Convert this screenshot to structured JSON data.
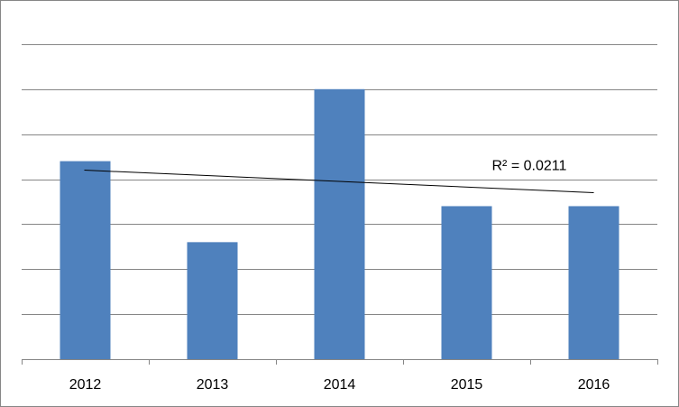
{
  "chart_data": {
    "type": "bar",
    "categories": [
      "2012",
      "2013",
      "2014",
      "2015",
      "2016"
    ],
    "values": [
      4.4,
      2.6,
      6.0,
      3.4,
      3.4
    ],
    "ylim": [
      0,
      7.5
    ],
    "grid": true,
    "legend": "none",
    "bar_color": "#4f81bd",
    "trendline": {
      "type": "linear",
      "color": "#000000",
      "start": 4.2,
      "end": 3.7,
      "annotation": "R² = 0.0211"
    }
  }
}
